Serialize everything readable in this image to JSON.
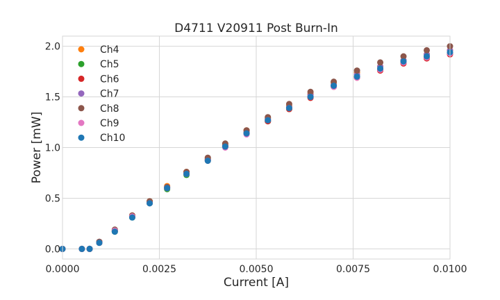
{
  "chart_data": {
    "type": "scatter",
    "title": "D4711 V20911 Post Burn-In",
    "xlabel": "Current [A]",
    "ylabel": "Power [mW]",
    "xlim": [
      0,
      0.01
    ],
    "ylim": [
      -0.1,
      2.1
    ],
    "xticks": [
      0,
      0.0025,
      0.005,
      0.0075,
      0.01
    ],
    "xtick_labels": [
      "0.0000",
      "0.0025",
      "0.0050",
      "0.0075",
      "0.0100"
    ],
    "yticks": [
      0,
      0.5,
      1.0,
      1.5,
      2.0
    ],
    "ytick_labels": [
      "0.0",
      "0.5",
      "1.0",
      "1.5",
      "2.0"
    ],
    "grid": true,
    "legend_position": "top-left",
    "x": [
      0,
      0.0005,
      0.0007,
      0.00095,
      0.00135,
      0.0018,
      0.00225,
      0.0027,
      0.0032,
      0.00375,
      0.0042,
      0.00475,
      0.0053,
      0.00585,
      0.0064,
      0.007,
      0.0076,
      0.0082,
      0.0088,
      0.0094,
      0.01
    ],
    "series": [
      {
        "name": "Ch4",
        "color": "#ff7f0e",
        "values": [
          0.0,
          0.0,
          0.0,
          0.07,
          0.18,
          0.33,
          0.47,
          0.62,
          0.76,
          0.89,
          1.03,
          1.17,
          1.29,
          1.41,
          1.53,
          1.64,
          1.74,
          1.8,
          1.86,
          1.92,
          1.96
        ]
      },
      {
        "name": "Ch5",
        "color": "#2ca02c",
        "values": [
          0.0,
          0.0,
          0.0,
          0.06,
          0.17,
          0.31,
          0.45,
          0.59,
          0.73,
          0.87,
          1.01,
          1.14,
          1.26,
          1.38,
          1.5,
          1.61,
          1.7,
          1.77,
          1.84,
          1.89,
          1.93
        ]
      },
      {
        "name": "Ch6",
        "color": "#d62728",
        "values": [
          0.0,
          0.0,
          0.0,
          0.06,
          0.18,
          0.32,
          0.46,
          0.6,
          0.74,
          0.88,
          1.01,
          1.14,
          1.26,
          1.38,
          1.49,
          1.6,
          1.69,
          1.76,
          1.83,
          1.88,
          1.92
        ]
      },
      {
        "name": "Ch7",
        "color": "#9467bd",
        "values": [
          0.0,
          0.0,
          0.0,
          0.07,
          0.18,
          0.32,
          0.46,
          0.61,
          0.75,
          0.88,
          1.02,
          1.15,
          1.28,
          1.4,
          1.52,
          1.62,
          1.72,
          1.8,
          1.86,
          1.92,
          1.96
        ]
      },
      {
        "name": "Ch8",
        "color": "#8c564b",
        "values": [
          0.0,
          0.0,
          0.0,
          0.07,
          0.19,
          0.33,
          0.47,
          0.61,
          0.76,
          0.9,
          1.04,
          1.17,
          1.3,
          1.43,
          1.55,
          1.65,
          1.76,
          1.84,
          1.9,
          1.96,
          2.0
        ]
      },
      {
        "name": "Ch9",
        "color": "#e377c2",
        "values": [
          0.0,
          0.0,
          0.0,
          0.06,
          0.18,
          0.32,
          0.45,
          0.6,
          0.74,
          0.87,
          1.0,
          1.13,
          1.27,
          1.39,
          1.5,
          1.6,
          1.69,
          1.77,
          1.84,
          1.89,
          1.93
        ]
      },
      {
        "name": "Ch10",
        "color": "#1f77b4",
        "values": [
          0.0,
          0.0,
          0.0,
          0.06,
          0.17,
          0.31,
          0.45,
          0.6,
          0.74,
          0.87,
          1.01,
          1.14,
          1.27,
          1.39,
          1.5,
          1.61,
          1.7,
          1.78,
          1.85,
          1.9,
          1.94
        ]
      }
    ]
  }
}
